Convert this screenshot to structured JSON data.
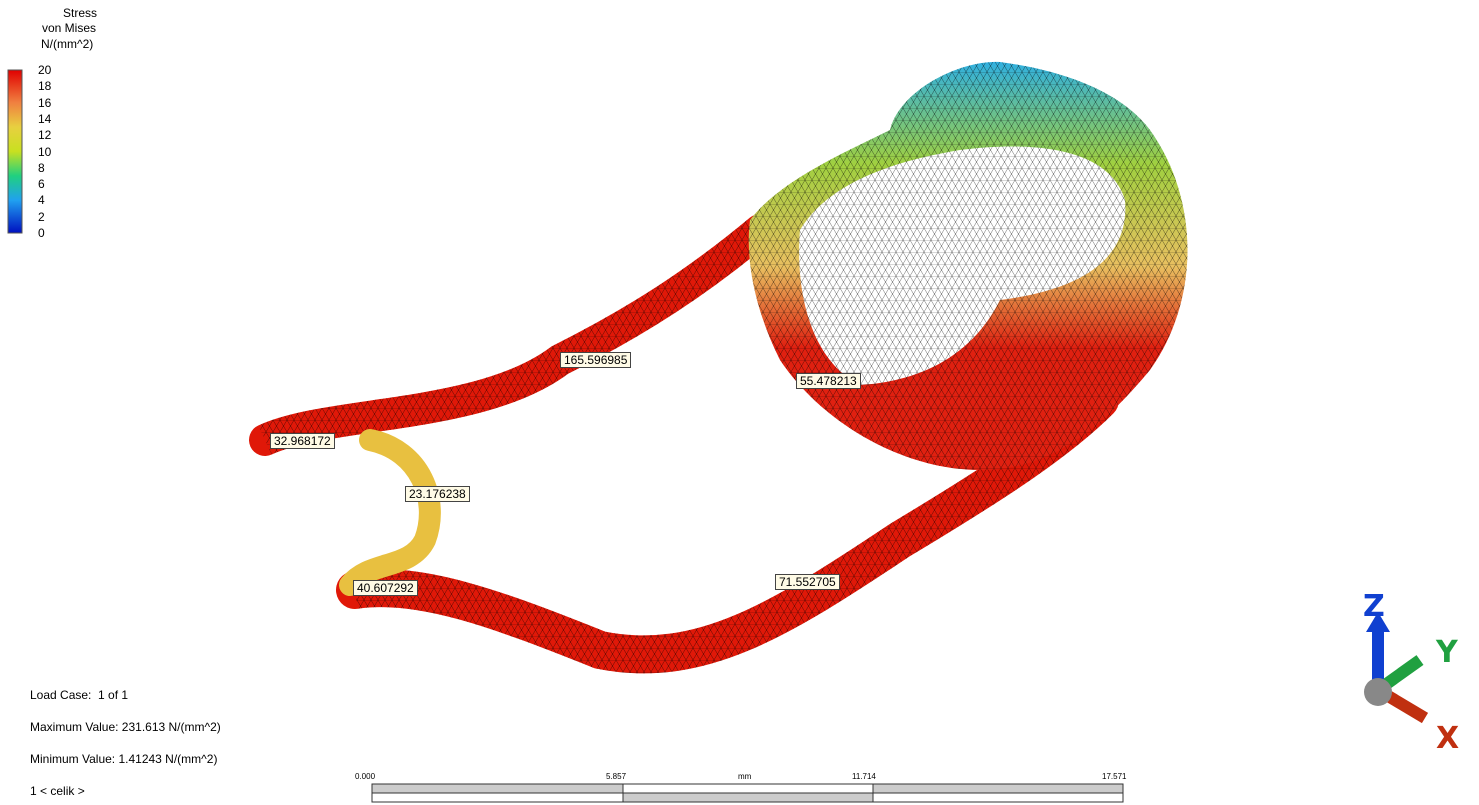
{
  "legend": {
    "title": [
      "Stress",
      "von Mises",
      "N/(mm^2)"
    ],
    "ticks": [
      "20",
      "18",
      "16",
      "14",
      "12",
      "10",
      "8",
      "6",
      "4",
      "2",
      "0"
    ]
  },
  "probes": [
    "165.596985",
    "55.478213",
    "32.968172",
    "23.176238",
    "40.607292",
    "71.552705"
  ],
  "info": {
    "load_case": "Load Case:  1 of 1",
    "max": "Maximum Value: 231.613 N/(mm^2)",
    "min": "Minimum Value: 1.41243 N/(mm^2)",
    "config": "1 < celik >"
  },
  "scale_bar": {
    "unit": "mm",
    "ticks": [
      "0.000",
      "5.857",
      "11.714",
      "17.571"
    ]
  },
  "triad": {
    "x": "X",
    "y": "Y",
    "z": "Z"
  }
}
